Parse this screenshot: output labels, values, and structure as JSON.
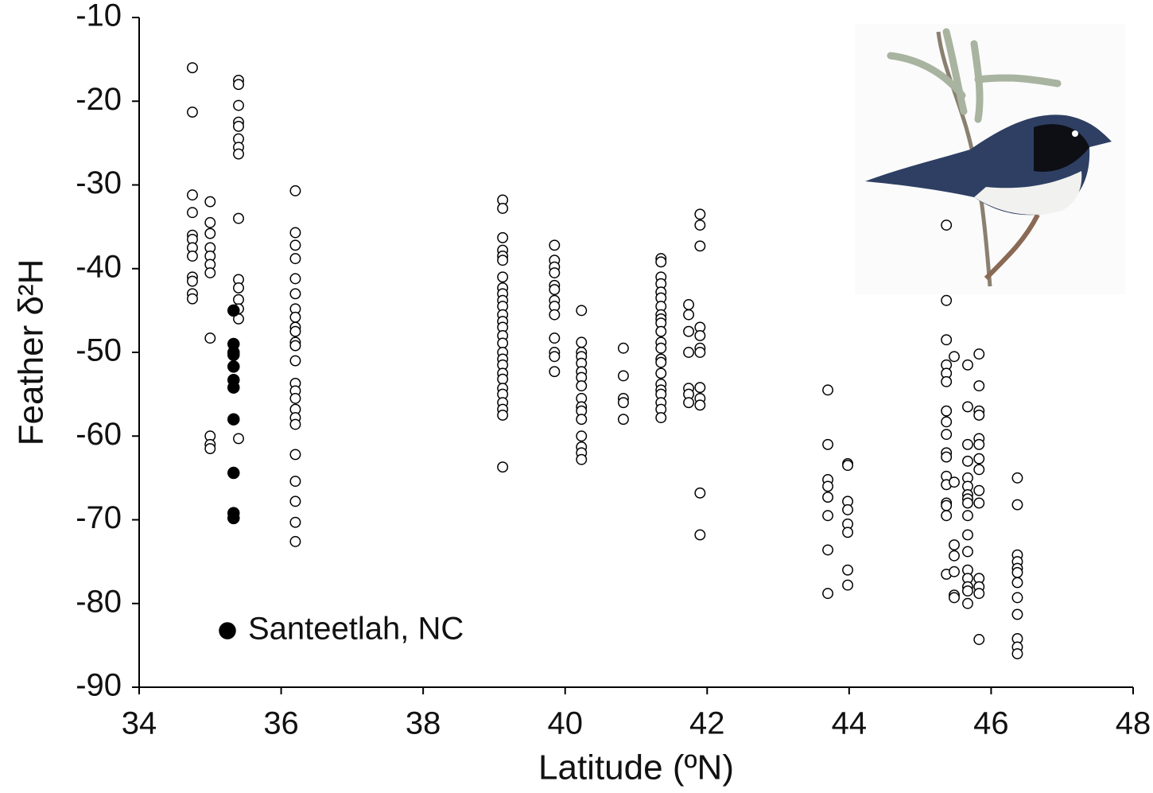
{
  "chart_data": {
    "type": "scatter",
    "x_label": "Latitude (ºN)",
    "y_label": "Feather δ²H",
    "xlim": [
      34,
      48
    ],
    "ylim": [
      -90,
      -10
    ],
    "xticks": [
      34,
      36,
      38,
      40,
      42,
      44,
      46,
      48
    ],
    "yticks": [
      -90,
      -80,
      -70,
      -60,
      -50,
      -40,
      -30,
      -20,
      -10
    ],
    "series": [
      {
        "color": "#000000",
        "filled": false,
        "x": [
          34.75,
          34.75,
          34.75,
          34.75,
          34.75,
          34.75,
          34.75,
          34.75,
          34.75,
          34.75,
          34.75,
          34.75,
          35.0,
          35.0,
          35.0,
          35.0,
          35.0,
          35.0,
          35.0,
          35.0,
          35.0,
          35.0,
          35.0,
          35.4,
          35.4,
          35.4,
          35.4,
          35.4,
          35.4,
          35.4,
          35.4,
          35.4,
          35.4,
          35.4,
          35.4,
          35.4,
          35.4,
          35.4,
          36.2,
          36.2,
          36.2,
          36.2,
          36.2,
          36.2,
          36.2,
          36.2,
          36.2,
          36.2,
          36.2,
          36.2,
          36.2,
          36.2,
          36.2,
          36.2,
          36.2,
          36.2,
          36.2,
          36.2,
          36.2,
          36.2,
          36.2,
          36.2,
          39.12,
          39.12,
          39.12,
          39.12,
          39.12,
          39.12,
          39.12,
          39.12,
          39.12,
          39.12,
          39.12,
          39.12,
          39.12,
          39.12,
          39.12,
          39.12,
          39.12,
          39.12,
          39.12,
          39.12,
          39.12,
          39.12,
          39.12,
          39.12,
          39.12,
          39.12,
          39.12,
          39.85,
          39.85,
          39.85,
          39.85,
          39.85,
          39.85,
          39.85,
          39.85,
          39.85,
          39.85,
          39.85,
          39.85,
          39.85,
          40.23,
          40.23,
          40.23,
          40.23,
          40.23,
          40.23,
          40.23,
          40.23,
          40.23,
          40.23,
          40.23,
          40.23,
          40.23,
          40.23,
          40.23,
          40.23,
          40.82,
          40.82,
          40.82,
          40.82,
          40.82,
          41.35,
          41.35,
          41.35,
          41.35,
          41.35,
          41.35,
          41.35,
          41.35,
          41.35,
          41.35,
          41.35,
          41.35,
          41.35,
          41.35,
          41.35,
          41.35,
          41.35,
          41.35,
          41.35,
          41.35,
          41.35,
          41.35,
          41.74,
          41.74,
          41.74,
          41.74,
          41.74,
          41.74,
          41.74,
          41.9,
          41.9,
          41.9,
          41.9,
          41.9,
          41.9,
          41.9,
          41.9,
          41.9,
          41.9,
          41.9,
          41.9,
          43.7,
          43.7,
          43.7,
          43.7,
          43.7,
          43.7,
          43.7,
          43.7,
          43.98,
          43.98,
          43.98,
          43.98,
          43.98,
          43.98,
          43.98,
          43.98,
          45.37,
          45.37,
          45.37,
          45.37,
          45.37,
          45.37,
          45.37,
          45.37,
          45.37,
          45.37,
          45.37,
          45.37,
          45.37,
          45.37,
          45.37,
          45.37,
          45.37,
          45.48,
          45.48,
          45.48,
          45.48,
          45.48,
          45.48,
          45.48,
          45.67,
          45.67,
          45.67,
          45.67,
          45.67,
          45.67,
          45.67,
          45.67,
          45.67,
          45.67,
          45.67,
          45.67,
          45.67,
          45.67,
          45.67,
          45.67,
          45.67,
          45.83,
          45.83,
          45.83,
          45.83,
          45.83,
          45.83,
          45.83,
          45.83,
          45.83,
          45.83,
          45.83,
          45.83,
          45.83,
          45.83,
          46.37,
          46.37,
          46.37,
          46.37,
          46.37,
          46.37,
          46.37,
          46.37,
          46.37,
          46.37,
          46.37,
          46.37
        ],
        "values": [
          -16,
          -21.3,
          -31.2,
          -33.3,
          -36,
          -36.5,
          -37.5,
          -38.5,
          -41,
          -41.5,
          -43,
          -43.6,
          -32,
          -34.5,
          -35.8,
          -37.5,
          -38.5,
          -39.5,
          -40.5,
          -48.3,
          -60,
          -61,
          -61.5,
          -17.5,
          -18,
          -20.5,
          -22.5,
          -23,
          -24.5,
          -25.5,
          -26.3,
          -34,
          -41.3,
          -42.3,
          -43.7,
          -44.8,
          -46,
          -60.3,
          -30.7,
          -35.7,
          -37.2,
          -38.8,
          -41.2,
          -43,
          -44.8,
          -45.8,
          -47,
          -47.5,
          -48.8,
          -49.2,
          -51,
          -53.7,
          -54.6,
          -55.5,
          -56.8,
          -57.8,
          -58.6,
          -62.2,
          -65.4,
          -67.8,
          -70.3,
          -72.6,
          -31.8,
          -32.8,
          -36.3,
          -37.8,
          -38.5,
          -39,
          -41,
          -42.3,
          -43,
          -43.8,
          -44.5,
          -45.5,
          -46.3,
          -47,
          -48,
          -48.9,
          -50,
          -50.8,
          -51.5,
          -52.5,
          -53.2,
          -54.3,
          -55,
          -56,
          -56.8,
          -57.5,
          -63.7,
          -37.2,
          -39,
          -39.8,
          -40.5,
          -42,
          -42.5,
          -43.8,
          -44.5,
          -45.5,
          -48.3,
          -50,
          -50.5,
          -52.3,
          -45,
          -48.8,
          -50,
          -50.5,
          -51.3,
          -52.3,
          -53,
          -54,
          -55.5,
          -56.5,
          -57,
          -58,
          -60,
          -61.3,
          -62,
          -62.8,
          -49.5,
          -52.8,
          -55.5,
          -56,
          -58,
          -38.8,
          -39.2,
          -41,
          -41.8,
          -42.8,
          -43.5,
          -44.5,
          -45.5,
          -46,
          -46.5,
          -47.5,
          -48.8,
          -49.5,
          -50.8,
          -51.2,
          -52.5,
          -53.8,
          -54.5,
          -55,
          -56,
          -56.8,
          -57.8,
          -44.3,
          -45.5,
          -47.5,
          -50,
          -54.3,
          -55,
          -56,
          -33.5,
          -34.8,
          -37.3,
          -47,
          -48,
          -49.5,
          -50,
          -54.2,
          -55.5,
          -56.3,
          -66.8,
          -71.8,
          -54.5,
          -61,
          -65.2,
          -66,
          -67.3,
          -69.5,
          -73.6,
          -78.8,
          -63.3,
          -63.5,
          -67.8,
          -68.8,
          -70.5,
          -71.5,
          -76,
          -77.8,
          -34.8,
          -43.8,
          -48.5,
          -51.5,
          -52.5,
          -53.5,
          -57,
          -58.3,
          -59.8,
          -62,
          -62.5,
          -64.8,
          -65.8,
          -68,
          -68.3,
          -69.5,
          -76.5,
          -50.5,
          -65.5,
          -73,
          -74.3,
          -76.2,
          -79,
          -79.3,
          -51.5,
          -56.5,
          -61,
          -63,
          -65,
          -66,
          -67,
          -67.5,
          -68,
          -69.5,
          -71.8,
          -73.8,
          -76,
          -77,
          -78,
          -78.5,
          -80,
          -50.2,
          -54,
          -57,
          -57.5,
          -60.3,
          -61,
          -62.7,
          -64,
          -66.5,
          -68,
          -77,
          -78,
          -78.8,
          -84.3,
          -65,
          -68.2,
          -74.2,
          -75,
          -75.8,
          -76.3,
          -77.5,
          -79.3,
          -81.3,
          -84.2,
          -85.2,
          -86
        ]
      },
      {
        "name": "Santeetlah, NC",
        "color": "#000000",
        "filled": true,
        "x": [
          35.33,
          35.33,
          35.33,
          35.33,
          35.33,
          35.33,
          35.33,
          35.33,
          35.33,
          35.33,
          35.33
        ],
        "values": [
          -45,
          -49,
          -50,
          -50.3,
          -51.7,
          -53.3,
          -54.2,
          -58,
          -64.4,
          -69.2,
          -69.8
        ]
      }
    ]
  }
}
